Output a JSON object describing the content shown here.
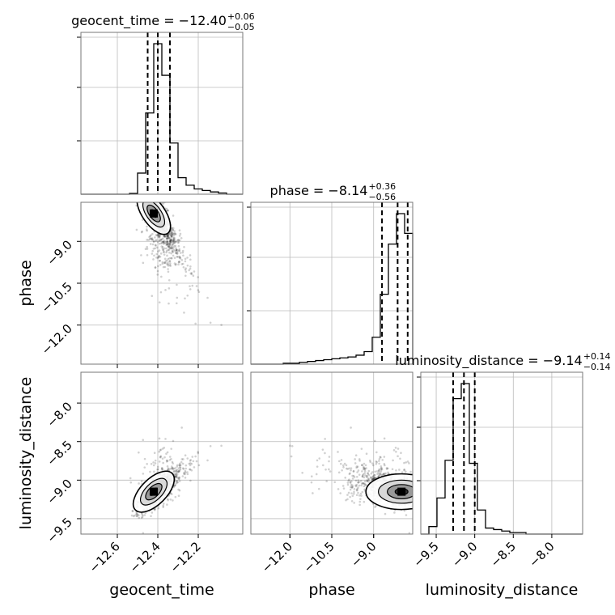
{
  "chart_data": {
    "type": "corner",
    "parameters": [
      "geocent_time",
      "phase",
      "luminosity_distance"
    ],
    "titles": [
      {
        "param": "geocent_time",
        "prefix": "geocent_time = ",
        "value": "−12.40",
        "plus": "+0.06",
        "minus": "−0.05"
      },
      {
        "param": "phase",
        "prefix": "phase = ",
        "value": "−8.14",
        "plus": "+0.36",
        "minus": "−0.56"
      },
      {
        "param": "luminosity_distance",
        "prefix": "luminosity_distance = ",
        "value": "−9.14",
        "plus": "+0.14",
        "minus": "−0.14"
      }
    ],
    "axes": {
      "geocent_time": {
        "range": [
          -12.78,
          -11.98
        ],
        "ticks": [
          -12.6,
          -12.4,
          -12.2
        ],
        "tick_labels": [
          "−12.6",
          "−12.4",
          "−12.2"
        ],
        "label": "geocent_time"
      },
      "phase": {
        "range": [
          -13.4,
          -7.6
        ],
        "ticks": [
          -12.0,
          -10.5,
          -9.0
        ],
        "tick_labels": [
          "−12.0",
          "−10.5",
          "−9.0"
        ],
        "label": "phase"
      },
      "luminosity_distance": {
        "range": [
          -9.7,
          -7.6
        ],
        "ticks": [
          -9.5,
          -9.0,
          -8.5,
          -8.0
        ],
        "tick_labels": [
          "−9.5",
          "−9.0",
          "−8.5",
          "−8.0"
        ],
        "label": "luminosity_distance"
      }
    },
    "quantiles": {
      "geocent_time": [
        -12.45,
        -12.4,
        -12.34
      ],
      "phase": [
        -8.7,
        -8.14,
        -7.78
      ],
      "luminosity_distance": [
        -9.28,
        -9.14,
        -9.0
      ]
    },
    "histograms": {
      "geocent_time": {
        "edges": [
          -12.78,
          -12.74,
          -12.7,
          -12.66,
          -12.62,
          -12.58,
          -12.54,
          -12.5,
          -12.46,
          -12.42,
          -12.38,
          -12.34,
          -12.3,
          -12.26,
          -12.22,
          -12.18,
          -12.14,
          -12.1,
          -12.06,
          -12.02,
          -11.98
        ],
        "counts": [
          0,
          0,
          0,
          0,
          0,
          0,
          0.5,
          14,
          54,
          100,
          79,
          34,
          11,
          6,
          3.5,
          2.5,
          1.5,
          0.8,
          0,
          0
        ]
      },
      "phase": {
        "edges": [
          -13.4,
          -13.11,
          -12.82,
          -12.53,
          -12.24,
          -11.95,
          -11.66,
          -11.37,
          -11.08,
          -10.79,
          -10.5,
          -10.21,
          -9.92,
          -9.63,
          -9.34,
          -9.05,
          -8.76,
          -8.47,
          -8.18,
          -7.89,
          -7.6
        ],
        "counts": [
          0,
          0,
          0,
          0,
          0.5,
          0.5,
          1,
          1.5,
          2,
          2.5,
          3,
          3.5,
          4,
          5,
          7,
          15,
          39,
          67,
          84,
          73
        ]
      },
      "luminosity_distance": {
        "edges": [
          -9.7,
          -9.595,
          -9.49,
          -9.385,
          -9.28,
          -9.175,
          -9.07,
          -8.965,
          -8.86,
          -8.755,
          -8.65,
          -8.545,
          -8.44,
          -8.335,
          -8.23,
          -8.125,
          -8.02,
          -7.915,
          -7.81,
          -7.705,
          -7.6
        ],
        "counts": [
          0,
          5,
          24,
          49,
          90,
          100,
          47,
          16,
          4,
          3,
          2,
          1,
          1,
          0,
          0,
          0,
          0,
          0,
          0,
          0
        ]
      }
    },
    "pairs": [
      {
        "x": "geocent_time",
        "y": "phase",
        "peak": [
          -12.42,
          -8.0
        ],
        "correlation": "negative"
      },
      {
        "x": "geocent_time",
        "y": "luminosity_distance",
        "peak": [
          -12.42,
          -9.15
        ],
        "correlation": "positive"
      },
      {
        "x": "phase",
        "y": "luminosity_distance",
        "peak": [
          -8.0,
          -9.15
        ],
        "correlation": "none"
      }
    ],
    "grid": true
  }
}
